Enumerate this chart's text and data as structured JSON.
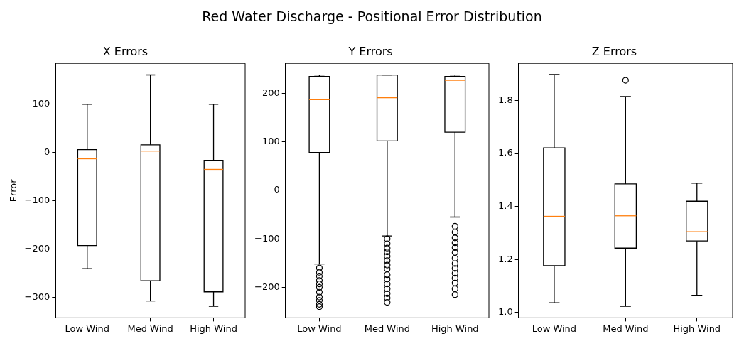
{
  "chart_data": [
    {
      "type": "other",
      "title": "Red Water Discharge - Positional Error Distribution"
    },
    {
      "type": "box",
      "title": "X Errors",
      "ylabel": "Error",
      "categories": [
        "Low Wind",
        "Med Wind",
        "High Wind"
      ],
      "ylim": [
        -343,
        185
      ],
      "yticks": [
        -300,
        -200,
        -100,
        0,
        100
      ],
      "grid": false,
      "marker": "circle",
      "series": [
        {
          "color": "#000000",
          "boxes": [
            {
              "low": -241,
              "q1": -193,
              "median": -13,
              "q3": 6,
              "high": 100
            },
            {
              "low": -308,
              "q1": -266,
              "median": 3,
              "q3": 16,
              "high": 161
            },
            {
              "low": -319,
              "q1": -289,
              "median": -35,
              "q3": -16,
              "high": 100
            }
          ]
        }
      ]
    },
    {
      "type": "box",
      "title": "Y Errors",
      "categories": [
        "Low Wind",
        "Med Wind",
        "High Wind"
      ],
      "ylim": [
        -263,
        262
      ],
      "yticks": [
        -200,
        -100,
        0,
        100,
        200
      ],
      "grid": false,
      "marker": "circle",
      "series": [
        {
          "color": "#000000",
          "boxes": [
            {
              "low": -152,
              "q1": 78,
              "median": 187,
              "q3": 235,
              "high": 238,
              "outliers": [
                -160,
                -169,
                -177,
                -186,
                -193,
                -200,
                -210,
                -220,
                -227,
                -235,
                -240
              ]
            },
            {
              "low": -94,
              "q1": 102,
              "median": 191,
              "q3": 238,
              "high": 238,
              "outliers": [
                -100,
                -110,
                -119,
                -127,
                -136,
                -145,
                -154,
                -162,
                -174,
                -183,
                -193,
                -203,
                -213,
                -222,
                -231
              ]
            },
            {
              "low": -55,
              "q1": 120,
              "median": 227,
              "q3": 235,
              "high": 238,
              "outliers": [
                -74,
                -86,
                -98,
                -108,
                -118,
                -128,
                -140,
                -151,
                -161,
                -171,
                -181,
                -191,
                -203,
                -215
              ]
            }
          ]
        }
      ]
    },
    {
      "type": "box",
      "title": "Z Errors",
      "categories": [
        "Low Wind",
        "Med Wind",
        "High Wind"
      ],
      "ylim": [
        0.98,
        1.94
      ],
      "yticks": [
        {
          "value": 1,
          "label": "1.0"
        },
        1.2,
        1.4,
        1.6,
        1.8
      ],
      "grid": false,
      "marker": "circle",
      "series": [
        {
          "color": "#000000",
          "boxes": [
            {
              "low": 1.037,
              "q1": 1.177,
              "median": 1.363,
              "q3": 1.621,
              "high": 1.898
            },
            {
              "low": 1.024,
              "q1": 1.243,
              "median": 1.365,
              "q3": 1.485,
              "high": 1.815,
              "outliers": [
                1.876
              ]
            },
            {
              "low": 1.065,
              "q1": 1.27,
              "median": 1.305,
              "q3": 1.42,
              "high": 1.488
            }
          ]
        }
      ]
    }
  ]
}
